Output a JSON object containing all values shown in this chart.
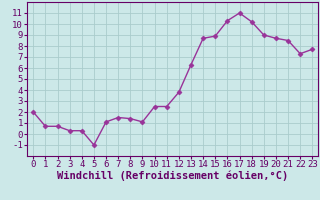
{
  "x": [
    0,
    1,
    2,
    3,
    4,
    5,
    6,
    7,
    8,
    9,
    10,
    11,
    12,
    13,
    14,
    15,
    16,
    17,
    18,
    19,
    20,
    21,
    22,
    23
  ],
  "y": [
    2,
    0.7,
    0.7,
    0.3,
    0.3,
    -1,
    1.1,
    1.5,
    1.4,
    1.1,
    2.5,
    2.5,
    3.8,
    6.3,
    8.7,
    8.9,
    10.3,
    11.0,
    10.2,
    9.0,
    8.7,
    8.5,
    7.3,
    7.7
  ],
  "line_color": "#993399",
  "marker": "D",
  "marker_size": 2.5,
  "bg_color": "#cce8e8",
  "grid_color": "#aacccc",
  "xlabel": "Windchill (Refroidissement éolien,°C)",
  "xlim": [
    -0.5,
    23.5
  ],
  "ylim": [
    -2,
    12
  ],
  "yticks": [
    -1,
    0,
    1,
    2,
    3,
    4,
    5,
    6,
    7,
    8,
    9,
    10,
    11
  ],
  "xticks": [
    0,
    1,
    2,
    3,
    4,
    5,
    6,
    7,
    8,
    9,
    10,
    11,
    12,
    13,
    14,
    15,
    16,
    17,
    18,
    19,
    20,
    21,
    22,
    23
  ],
  "tick_fontsize": 6.5,
  "xlabel_fontsize": 7.5,
  "tick_color": "#660066",
  "spine_color": "#660066"
}
